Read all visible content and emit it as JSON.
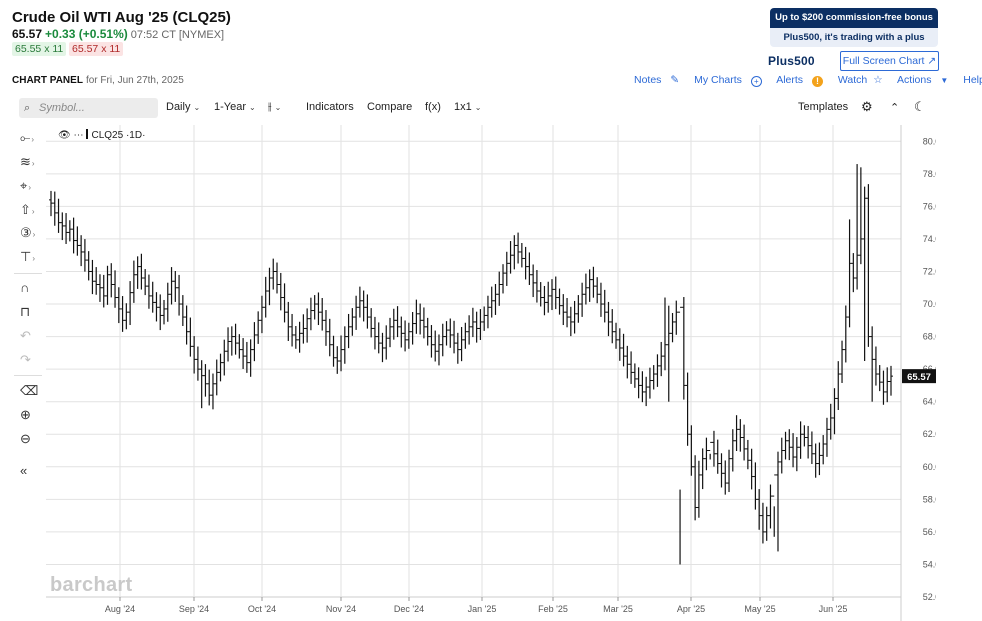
{
  "header": {
    "title": "Crude Oil WTI Aug '25 (CLQ25)",
    "last": "65.57",
    "change": "+0.33 (+0.51%)",
    "timestamp": "07:52 CT [NYMEX]",
    "bid": "65.55 x 11",
    "ask": "65.57 x 11"
  },
  "ad": {
    "line1": "Up to $200 commission-free bonus",
    "line2": "Plus500, it's trading with a plus",
    "logo": "Plus500"
  },
  "full_screen_label": "Full Screen Chart ↗",
  "panel": {
    "label": "CHART PANEL",
    "date": "for Fri, Jun 27th, 2025"
  },
  "links": {
    "notes": "Notes",
    "my_charts": "My Charts",
    "alerts": "Alerts",
    "watch": "Watch",
    "actions": "Actions",
    "help": "Help"
  },
  "toolbar": {
    "symbol_placeholder": "Symbol...",
    "interval": "Daily",
    "range": "1-Year",
    "indicators": "Indicators",
    "compare": "Compare",
    "fx": "f(x)",
    "layout": "1x1",
    "templates": "Templates"
  },
  "legend": {
    "symbol": "CLQ25",
    "interval": "·1D·"
  },
  "brand": "barchart",
  "colors": {
    "price_tag": "#111111",
    "bars": "#111111",
    "grid": "#e2e2e2",
    "link": "#2d6ad6"
  },
  "chart_data": {
    "type": "ohlc",
    "series_symbol": "CLQ25",
    "x_tick_labels": [
      "Aug '24",
      "Sep '24",
      "Oct '24",
      "Nov '24",
      "Dec '24",
      "Jan '25",
      "Feb '25",
      "Mar '25",
      "Apr '25",
      "May '25",
      "Jun '25"
    ],
    "y_ticks": [
      52,
      54,
      56,
      58,
      60,
      62,
      64,
      66,
      68,
      70,
      72,
      74,
      76,
      78,
      80
    ],
    "y_tick_labels": [
      "52.00",
      "54.00",
      "56.00",
      "58.00",
      "60.00",
      "62.00",
      "64.00",
      "66.00",
      "68.00",
      "70.00",
      "72.00",
      "74.00",
      "76.00",
      "78.00",
      "80.00"
    ],
    "ylim": [
      52,
      81
    ],
    "last_price": 65.57,
    "last_price_label": "65.57",
    "grid": true,
    "closes": [
      76.2,
      75.6,
      75.0,
      74.8,
      74.4,
      74.6,
      73.9,
      73.6,
      73.2,
      72.7,
      72.0,
      71.4,
      71.2,
      71.0,
      70.5,
      71.8,
      71.2,
      70.4,
      69.7,
      69.0,
      69.5,
      70.7,
      71.8,
      72.3,
      71.6,
      71.1,
      70.5,
      70.1,
      69.8,
      69.3,
      69.7,
      70.6,
      71.4,
      71.0,
      70.0,
      69.2,
      68.3,
      67.4,
      66.6,
      66.0,
      65.6,
      65.1,
      64.4,
      65.1,
      65.8,
      66.4,
      67.1,
      67.7,
      68.0,
      67.6,
      67.2,
      66.8,
      66.4,
      67.2,
      68.1,
      69.0,
      69.8,
      70.8,
      71.6,
      72.0,
      71.2,
      70.4,
      69.5,
      68.6,
      68.1,
      67.8,
      68.2,
      68.5,
      69.1,
      69.6,
      70.0,
      69.5,
      69.0,
      68.3,
      67.5,
      66.7,
      66.5,
      67.2,
      68.0,
      68.6,
      69.2,
      69.8,
      70.2,
      69.8,
      69.2,
      68.5,
      68.0,
      67.6,
      67.3,
      67.9,
      68.6,
      69.0,
      68.6,
      68.2,
      67.8,
      68.3,
      68.8,
      69.4,
      69.0,
      68.6,
      68.0,
      67.5,
      67.1,
      67.5,
      68.0,
      68.4,
      68.1,
      67.6,
      67.2,
      67.8,
      68.3,
      68.6,
      68.9,
      68.5,
      68.9,
      69.3,
      69.8,
      70.2,
      70.6,
      71.2,
      71.9,
      72.5,
      73.0,
      73.6,
      73.2,
      72.8,
      72.3,
      71.8,
      71.3,
      70.8,
      70.4,
      70.1,
      70.5,
      70.9,
      70.4,
      69.9,
      69.5,
      69.2,
      68.9,
      69.4,
      70.0,
      70.6,
      71.0,
      71.5,
      71.1,
      70.6,
      70.0,
      69.5,
      68.9,
      68.3,
      67.8,
      67.3,
      66.8,
      66.3,
      65.8,
      65.4,
      65.0,
      64.6,
      64.9,
      65.3,
      65.7,
      66.2,
      66.8,
      67.5,
      68.2,
      68.9,
      69.5,
      69.8,
      65.0,
      62.0,
      60.0,
      57.5,
      59.5,
      60.5,
      61.0,
      61.5,
      60.8,
      60.2,
      59.6,
      59.0,
      60.5,
      61.6,
      62.3,
      61.8,
      61.1,
      60.4,
      59.4,
      58.0,
      57.0,
      56.0,
      57.0,
      58.2,
      59.5,
      60.3,
      61.0,
      61.6,
      61.2,
      60.6,
      61.2,
      62.0,
      61.8,
      61.3,
      60.8,
      60.2,
      60.7,
      61.4,
      62.3,
      63.0,
      64.2,
      65.7,
      67.2,
      69.2,
      72.5,
      71.6,
      73.0,
      74.0,
      76.5,
      68.0,
      66.6,
      65.7,
      65.2,
      64.6,
      65.24,
      65.57
    ],
    "highs": {
      "163": 70.4,
      "164": 69.9,
      "167": 58.6,
      "175": 60.8,
      "192": 55.7,
      "212": 75.2,
      "214": 78.6,
      "215": 78.4
    },
    "lows": {
      "0": 75.4,
      "29": 68.4,
      "40": 63.6,
      "164": 64.0,
      "167": 54.0,
      "193": 54.8,
      "208": 62.0,
      "216": 66.5,
      "218": 64.0
    }
  }
}
